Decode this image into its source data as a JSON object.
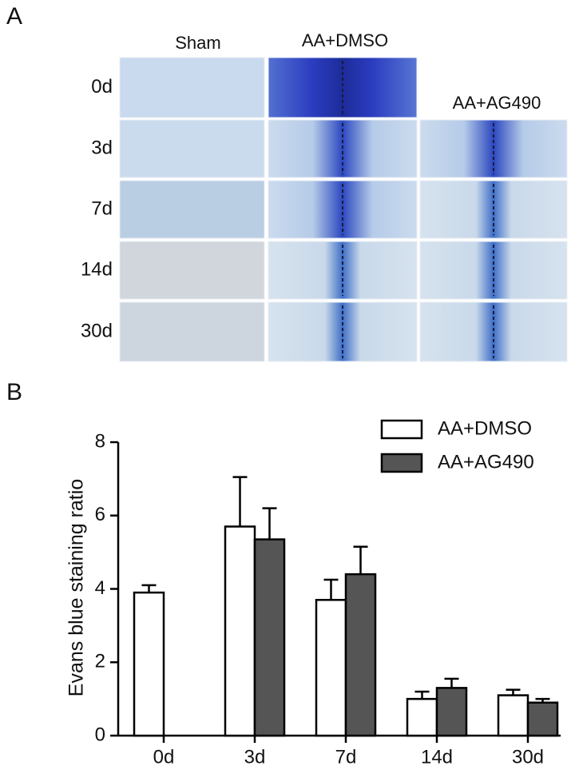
{
  "panel_a": {
    "label": "A",
    "columns": [
      "Sham",
      "AA+DMSO",
      "AA+AG490"
    ],
    "rows": [
      "0d",
      "3d",
      "7d",
      "14d",
      "30d"
    ]
  },
  "chart_data": {
    "type": "bar",
    "panel_label": "B",
    "y_label": "Evans blue staining ratio",
    "categories": [
      "0d",
      "3d",
      "7d",
      "14d",
      "30d"
    ],
    "series": [
      {
        "name": "AA+DMSO",
        "color": "#ffffff",
        "values": [
          3.9,
          5.7,
          3.7,
          1.0,
          1.1
        ],
        "errors": [
          0.2,
          1.35,
          0.55,
          0.2,
          0.15
        ]
      },
      {
        "name": "AA+AG490",
        "color": "#555555",
        "values": [
          null,
          5.35,
          4.4,
          1.3,
          0.9
        ],
        "errors": [
          null,
          0.85,
          0.75,
          0.25,
          0.1
        ]
      }
    ],
    "ylim": [
      0,
      8
    ],
    "yticks": [
      0,
      2,
      4,
      6,
      8
    ],
    "legend": "upper right"
  }
}
